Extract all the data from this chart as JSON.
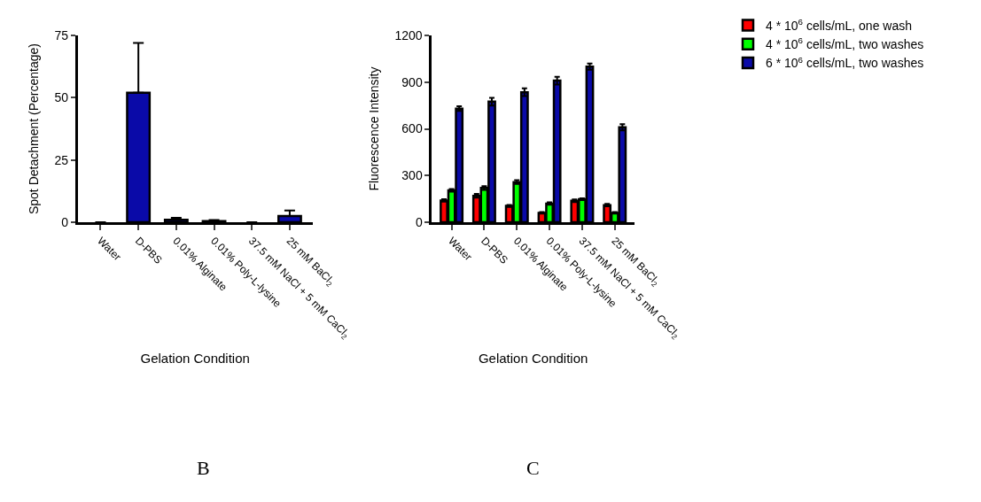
{
  "chart_data": [
    {
      "type": "bar",
      "ylabel": "Spot Detachment (Percentage)",
      "xlabel": "Gelation Condition",
      "categories": [
        "Water",
        "D-PBS",
        "0.01% Alginate",
        "0.01% Poly-L-lysine",
        "37.5 mM NaCl + 5 mM CaCl$_{2}$",
        "25 mM BaCl$_{2}$"
      ],
      "series": [
        {
          "color": "#0a0aa8",
          "values": [
            0,
            52,
            1,
            0.5,
            0,
            2.5
          ],
          "errors": [
            null,
            [
              52,
              72
            ],
            [
              1,
              1.8
            ],
            [
              0.5,
              0.9
            ],
            null,
            [
              2.5,
              4.7
            ]
          ]
        }
      ],
      "ylim": [
        0,
        75
      ],
      "yticks": [
        0,
        25,
        50,
        75
      ],
      "legend": false,
      "annotations": [
        "B"
      ]
    },
    {
      "type": "bar",
      "ylabel": "Fluorescence Intensity",
      "xlabel": "Gelation Condition",
      "categories": [
        "Water",
        "D-PBS",
        "0.01% Alginate",
        "0.01% Poly-L-lysine",
        "37.5 mM NaCl + 5 mM CaCl$_{2}$",
        "25 mM BaCl$_{2}$"
      ],
      "series": [
        {
          "name": "4 * 10$^{6}$ cells/mL, one wash",
          "color": "#ff0000",
          "values": [
            140,
            170,
            105,
            60,
            138,
            110
          ],
          "errors": [
            8,
            12,
            6,
            5,
            8,
            8
          ]
        },
        {
          "name": "4 * 10$^{6}$ cells/mL, two washes",
          "color": "#00ff00",
          "values": [
            205,
            220,
            258,
            120,
            148,
            60
          ],
          "errors": [
            8,
            12,
            12,
            8,
            6,
            5
          ]
        },
        {
          "name": "6 * 10$^{6}$ cells/mL, two washes",
          "color": "#0a0aa8",
          "values": [
            730,
            775,
            835,
            910,
            1000,
            610
          ],
          "errors": [
            15,
            25,
            25,
            25,
            20,
            20
          ]
        }
      ],
      "ylim": [
        0,
        1200
      ],
      "yticks": [
        0,
        300,
        600,
        900,
        1200
      ],
      "legend": "top right",
      "annotations": [
        "C"
      ]
    }
  ]
}
